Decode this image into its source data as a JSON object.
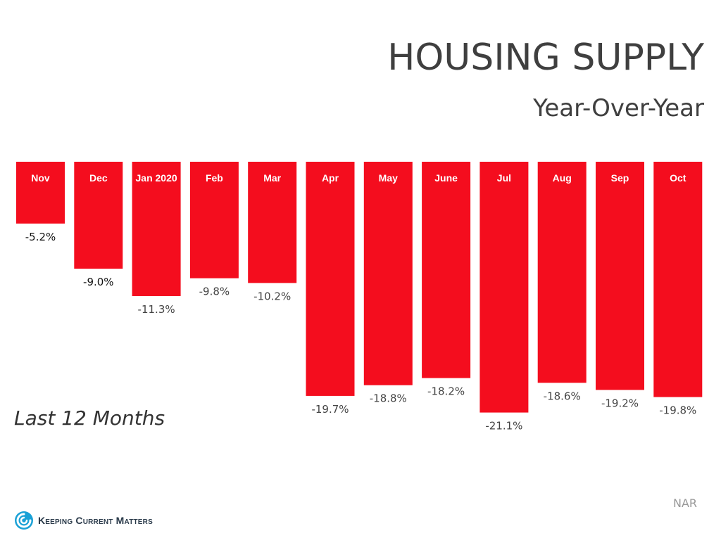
{
  "header": {
    "title": "HOUSING SUPPLY",
    "subtitle": "Year-Over-Year"
  },
  "period_label": "Last 12 Months",
  "source": "NAR",
  "brand": {
    "name": "Keeping Current Matters",
    "logo_icon": "swirl-logo-icon"
  },
  "colors": {
    "bar": "#f40d1e",
    "label_dark": "#111111",
    "label_gray": "#444444",
    "category_text": "#ffffff"
  },
  "chart_data": {
    "type": "bar",
    "title": "HOUSING SUPPLY",
    "subtitle": "Year-Over-Year",
    "categories": [
      "Nov",
      "Dec",
      "Jan 2020",
      "Feb",
      "Mar",
      "Apr",
      "May",
      "June",
      "Jul",
      "Aug",
      "Sep",
      "Oct"
    ],
    "values": [
      -5.2,
      -9.0,
      -11.3,
      -9.8,
      -10.2,
      -19.7,
      -18.8,
      -18.2,
      -21.1,
      -18.6,
      -19.2,
      -19.8
    ],
    "value_labels": [
      "-5.2%",
      "-9.0%",
      "-11.3%",
      "-9.8%",
      "-10.2%",
      "-19.7%",
      "-18.8%",
      "-18.2%",
      "-21.1%",
      "-18.6%",
      "-19.2%",
      "-19.8%"
    ],
    "ylim": [
      -21.1,
      0
    ],
    "grid": false,
    "legend": "none"
  }
}
